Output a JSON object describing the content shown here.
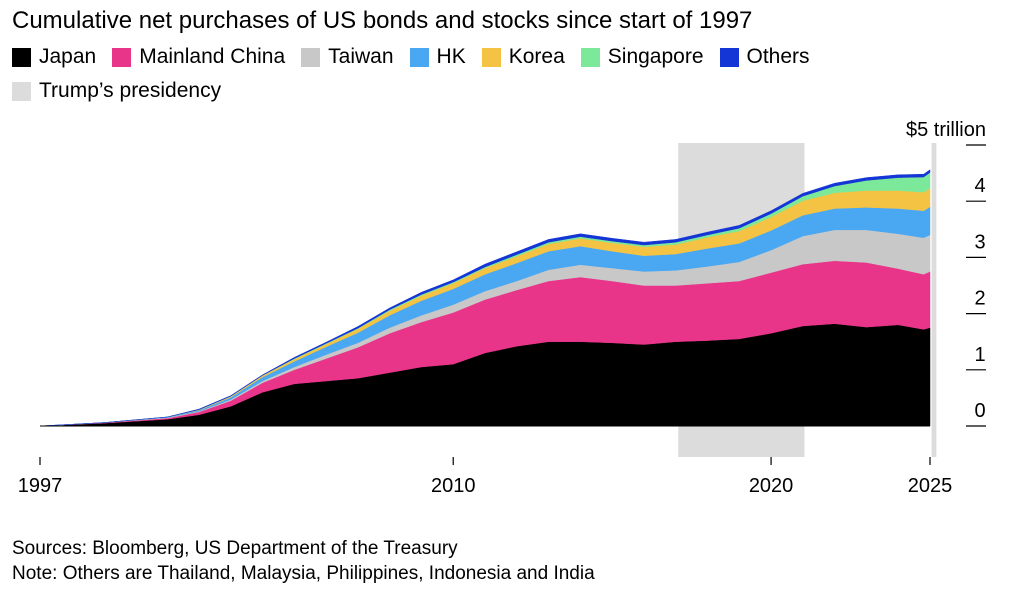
{
  "title": "Cumulative net purchases of US bonds and stocks since start of 1997",
  "legend": [
    {
      "label": "Japan",
      "color": "#000000"
    },
    {
      "label": "Mainland China",
      "color": "#e8358a"
    },
    {
      "label": "Taiwan",
      "color": "#c8c8c8"
    },
    {
      "label": "HK",
      "color": "#4aa8f2"
    },
    {
      "label": "Korea",
      "color": "#f5c343"
    },
    {
      "label": "Singapore",
      "color": "#7be89a"
    },
    {
      "label": "Others",
      "color": "#1536d6"
    }
  ],
  "shade_legend": {
    "label": "Trump’s presidency",
    "color": "#dcdcdc"
  },
  "footer": {
    "sources": "Sources: Bloomberg, US Department of the Treasury",
    "note": "Note: Others are Thailand, Malaysia, Philippines, Indonesia and India"
  },
  "chart_data": {
    "type": "area",
    "stacked": true,
    "title": "Cumulative net purchases of US bonds and stocks since start of 1997",
    "y_unit_label": "$5 trillion",
    "ylim": [
      0,
      5
    ],
    "y_ticks": [
      0,
      1,
      2,
      3,
      4,
      5
    ],
    "y_tick_labels": [
      "0",
      "1",
      "2",
      "3",
      "4",
      "$5 trillion"
    ],
    "y_axis_position": "right",
    "xlim": [
      1997,
      2025
    ],
    "x_ticks": [
      1997,
      2010,
      2020,
      2025
    ],
    "x_tick_labels": [
      "1997",
      "2010",
      "2020",
      "2025"
    ],
    "shaded_ranges": [
      {
        "label": "Trump’s presidency",
        "start": 2017.08,
        "end": 2021.05
      },
      {
        "label": "Trump’s presidency",
        "start": 2025.05,
        "end": 2025.2
      }
    ],
    "x": [
      1997,
      1999,
      2001,
      2002,
      2003,
      2004,
      2005,
      2006,
      2007,
      2008,
      2009,
      2010,
      2011,
      2012,
      2013,
      2014,
      2015,
      2016,
      2017,
      2018,
      2019,
      2020,
      2021,
      2022,
      2023,
      2024,
      2024.8,
      2025
    ],
    "series": [
      {
        "name": "Japan",
        "color": "#000000",
        "values": [
          0,
          0.05,
          0.12,
          0.2,
          0.35,
          0.6,
          0.75,
          0.8,
          0.85,
          0.95,
          1.05,
          1.1,
          1.3,
          1.42,
          1.5,
          1.5,
          1.48,
          1.45,
          1.5,
          1.52,
          1.55,
          1.65,
          1.78,
          1.82,
          1.76,
          1.8,
          1.72,
          1.75
        ]
      },
      {
        "name": "Mainland China",
        "color": "#e8358a",
        "values": [
          0,
          0.01,
          0.02,
          0.05,
          0.1,
          0.17,
          0.25,
          0.4,
          0.55,
          0.7,
          0.8,
          0.92,
          0.95,
          1.0,
          1.08,
          1.15,
          1.1,
          1.05,
          1.0,
          1.02,
          1.03,
          1.08,
          1.1,
          1.12,
          1.15,
          1.0,
          0.98,
          1.0
        ]
      },
      {
        "name": "Taiwan",
        "color": "#c8c8c8",
        "values": [
          0,
          0,
          0.01,
          0.01,
          0.02,
          0.03,
          0.05,
          0.07,
          0.08,
          0.1,
          0.12,
          0.14,
          0.15,
          0.16,
          0.2,
          0.22,
          0.23,
          0.25,
          0.27,
          0.3,
          0.34,
          0.4,
          0.5,
          0.55,
          0.58,
          0.62,
          0.65,
          0.65
        ]
      },
      {
        "name": "HK",
        "color": "#4aa8f2",
        "values": [
          0,
          0,
          0.01,
          0.02,
          0.04,
          0.07,
          0.1,
          0.14,
          0.18,
          0.22,
          0.26,
          0.28,
          0.3,
          0.32,
          0.33,
          0.33,
          0.3,
          0.28,
          0.29,
          0.32,
          0.33,
          0.35,
          0.37,
          0.38,
          0.4,
          0.45,
          0.48,
          0.5
        ]
      },
      {
        "name": "Korea",
        "color": "#f5c343",
        "values": [
          0,
          0,
          0,
          0.01,
          0.02,
          0.03,
          0.04,
          0.05,
          0.07,
          0.08,
          0.09,
          0.1,
          0.11,
          0.12,
          0.13,
          0.14,
          0.15,
          0.16,
          0.17,
          0.2,
          0.22,
          0.24,
          0.26,
          0.28,
          0.3,
          0.32,
          0.33,
          0.33
        ]
      },
      {
        "name": "Singapore",
        "color": "#7be89a",
        "values": [
          0,
          0,
          0,
          0,
          0,
          0,
          0.01,
          0.01,
          0.01,
          0.02,
          0.02,
          0.02,
          0.02,
          0.03,
          0.03,
          0.03,
          0.03,
          0.03,
          0.04,
          0.04,
          0.05,
          0.06,
          0.08,
          0.12,
          0.18,
          0.23,
          0.27,
          0.28
        ]
      },
      {
        "name": "Others",
        "color": "#1536d6",
        "values": [
          0,
          0,
          0,
          0.01,
          0.01,
          0.01,
          0.02,
          0.02,
          0.03,
          0.03,
          0.04,
          0.04,
          0.05,
          0.05,
          0.05,
          0.05,
          0.05,
          0.05,
          0.05,
          0.05,
          0.05,
          0.05,
          0.05,
          0.05,
          0.05,
          0.05,
          0.05,
          0.05
        ]
      }
    ]
  }
}
